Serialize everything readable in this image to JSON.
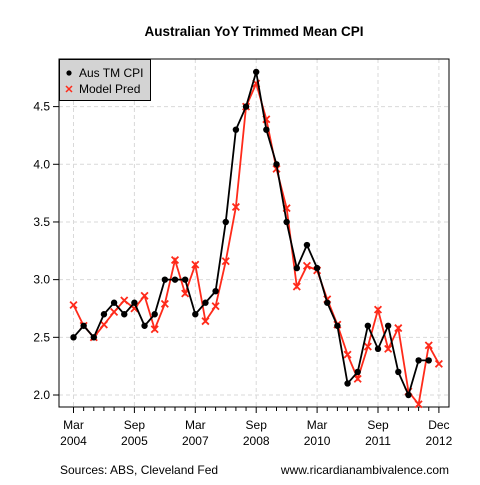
{
  "chart_data": {
    "type": "line",
    "title": "Australian YoY Trimmed Mean CPI",
    "xlabel": "",
    "ylabel": "",
    "ylim": [
      1.95,
      4.85
    ],
    "y_ticks": [
      "2.0",
      "2.5",
      "3.0",
      "3.5",
      "4.0",
      "4.5"
    ],
    "x_period": "quarterly",
    "x_start": "2004 Q1",
    "x_ticks": [
      {
        "top": "Mar",
        "bottom": "2004"
      },
      {
        "top": "Sep",
        "bottom": "2005"
      },
      {
        "top": "Mar",
        "bottom": "2007"
      },
      {
        "top": "Sep",
        "bottom": "2008"
      },
      {
        "top": "Mar",
        "bottom": "2010"
      },
      {
        "top": "Sep",
        "bottom": "2011"
      },
      {
        "top": "Dec",
        "bottom": "2012"
      }
    ],
    "grid": true,
    "legend_position": "top-left",
    "series": [
      {
        "name": "Aus TM CPI",
        "color": "#000000",
        "marker": "dot",
        "values": [
          2.5,
          2.6,
          2.5,
          2.7,
          2.8,
          2.7,
          2.8,
          2.6,
          2.7,
          3.0,
          3.0,
          3.0,
          2.7,
          2.8,
          2.9,
          3.5,
          4.3,
          4.5,
          4.8,
          4.3,
          4.0,
          3.5,
          3.1,
          3.3,
          3.1,
          2.8,
          2.6,
          2.1,
          2.2,
          2.6,
          2.4,
          2.6,
          2.2,
          2.0,
          2.3,
          2.3
        ]
      },
      {
        "name": "Model Pred",
        "color": "#ff2a1a",
        "marker": "x",
        "values": [
          2.78,
          2.6,
          2.5,
          2.61,
          2.72,
          2.82,
          2.75,
          2.86,
          2.57,
          2.79,
          3.17,
          2.88,
          3.13,
          2.64,
          2.77,
          3.16,
          3.63,
          4.5,
          4.7,
          4.39,
          3.96,
          3.62,
          2.94,
          3.12,
          3.08,
          2.83,
          2.61,
          2.35,
          2.14,
          2.42,
          2.74,
          2.4,
          2.58,
          2.03,
          1.92,
          2.43,
          2.27
        ]
      }
    ]
  },
  "footer": {
    "source": "Sources: ABS, Cleveland Fed",
    "site": "www.ricardianambivalence.com"
  }
}
